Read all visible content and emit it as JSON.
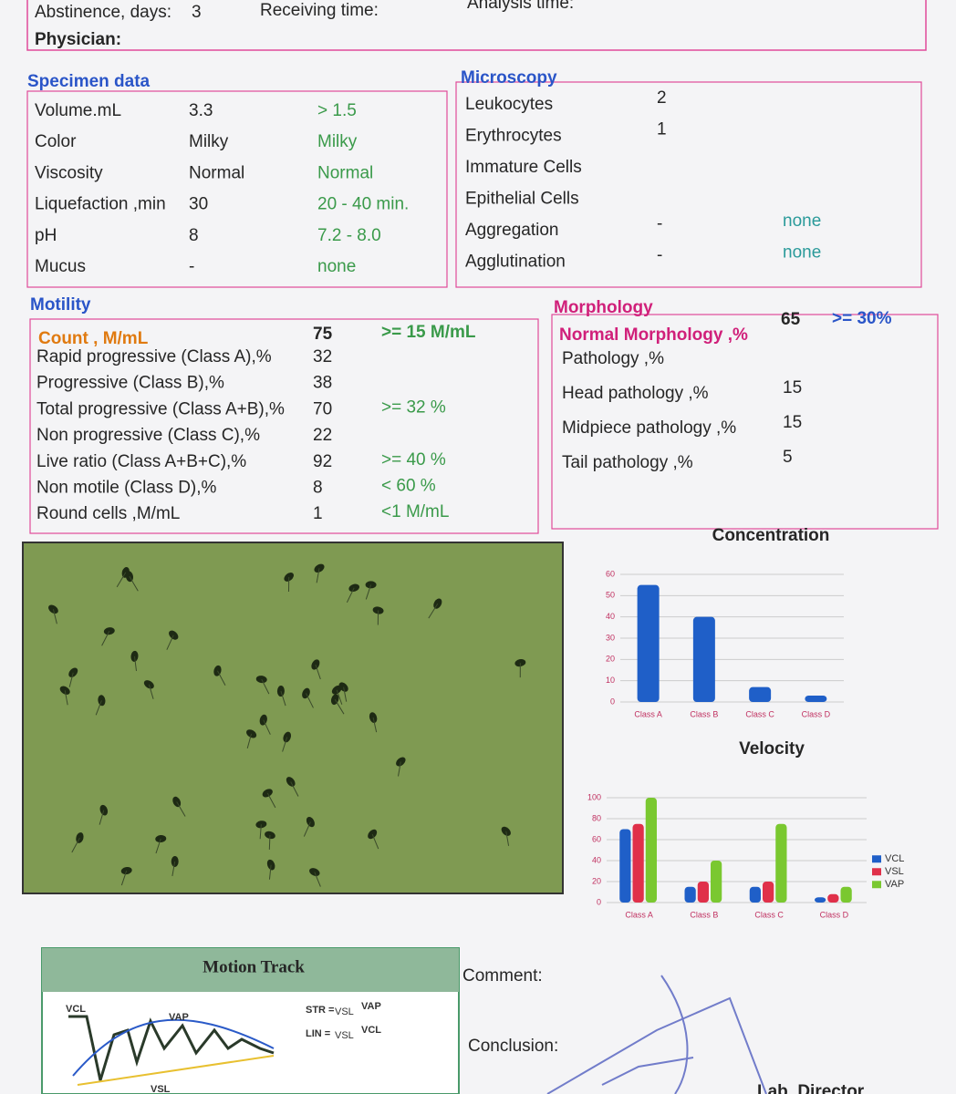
{
  "header": {
    "abstinence_label": "Abstinence, days:",
    "abstinence_value": "3",
    "receiving_time": "Receiving time:",
    "analysis_time": "Analysis time:",
    "physician": "Physician:"
  },
  "specimen": {
    "title": "Specimen data",
    "rows": [
      {
        "label": "Volume.mL",
        "value": "3.3",
        "reference": "> 1.5"
      },
      {
        "label": "Color",
        "value": "Milky",
        "reference": "Milky"
      },
      {
        "label": "Viscosity",
        "value": "Normal",
        "reference": "Normal"
      },
      {
        "label": "Liquefaction ,min",
        "value": "30",
        "reference": "20 - 40 min."
      },
      {
        "label": "pH",
        "value": "8",
        "reference": "7.2 - 8.0"
      },
      {
        "label": "Mucus",
        "value": "-",
        "reference": "none"
      }
    ]
  },
  "microscopy": {
    "title": "Microscopy",
    "rows": [
      {
        "label": "Leukocytes",
        "value": "2"
      },
      {
        "label": "Erythrocytes",
        "value": "1"
      },
      {
        "label": "Immature Cells"
      },
      {
        "label": "Epithelial Cells"
      },
      {
        "label": "Aggregation",
        "value": "-",
        "reference": "none"
      },
      {
        "label": "Agglutination",
        "value": "-",
        "reference": "none"
      }
    ]
  },
  "motility": {
    "title": "Motility",
    "count": {
      "label": "Count , M/mL",
      "value": "75",
      "reference": ">= 15 M/mL"
    },
    "rows": [
      {
        "label": "Rapid progressive (Class A),%",
        "value": "32"
      },
      {
        "label": "Progressive (Class B),%",
        "value": "38"
      },
      {
        "label": "Total progressive (Class A+B),%",
        "value": "70",
        "reference": ">= 32 %"
      },
      {
        "label": "Non progressive (Class C),%",
        "value": "22"
      },
      {
        "label": "Live ratio (Class A+B+C),%",
        "value": "92",
        "reference": ">= 40 %"
      },
      {
        "label": "Non motile (Class D),%",
        "value": "8",
        "reference": "< 60 %"
      },
      {
        "label": "Round cells ,M/mL",
        "value": "1",
        "reference": "<1 M/mL"
      }
    ]
  },
  "morphology": {
    "title": "Morphology",
    "normal": {
      "label": "Normal Morphology ,%",
      "value": "65",
      "reference": ">= 30%"
    },
    "rows": [
      {
        "label": "Pathology ,%"
      },
      {
        "label": "Head pathology ,%",
        "value": "15"
      },
      {
        "label": "Midpiece pathology ,%",
        "value": "15"
      },
      {
        "label": "Tail pathology ,%",
        "value": "5"
      }
    ]
  },
  "concentration": {
    "type": "bar",
    "title": "Concentration",
    "categories": [
      "Class A",
      "Class B",
      "Class C",
      "Class D"
    ],
    "values": [
      55,
      40,
      7,
      3
    ],
    "color": "#1f5fc8",
    "ylim": [
      0,
      60
    ],
    "yticks": [
      0,
      10,
      20,
      30,
      40,
      50,
      60
    ],
    "grid": true
  },
  "velocity": {
    "type": "bar",
    "title": "Velocity",
    "categories": [
      "Class A",
      "Class B",
      "Class C",
      "Class D"
    ],
    "series": [
      {
        "name": "VCL",
        "color": "#1f5fc8",
        "values": [
          70,
          15,
          15,
          5
        ]
      },
      {
        "name": "VSL",
        "color": "#e0304a",
        "values": [
          75,
          20,
          20,
          8
        ]
      },
      {
        "name": "VAP",
        "color": "#7ac830",
        "values": [
          100,
          40,
          75,
          15
        ]
      }
    ],
    "ylim": [
      0,
      100
    ],
    "yticks": [
      0,
      20,
      40,
      60,
      80,
      100
    ],
    "grid": true
  },
  "motion_track": {
    "title": "Motion Track",
    "curve_labels": [
      "VCL",
      "VAP",
      "VSL"
    ],
    "str_label": "STR =",
    "lin_label": "LIN =",
    "numerator": "VSL",
    "str_denominator": "VAP",
    "lin_denominator": "VCL"
  },
  "footer": {
    "comment": "Comment:",
    "conclusion": "Conclusion:",
    "director": "Lab. Director"
  }
}
